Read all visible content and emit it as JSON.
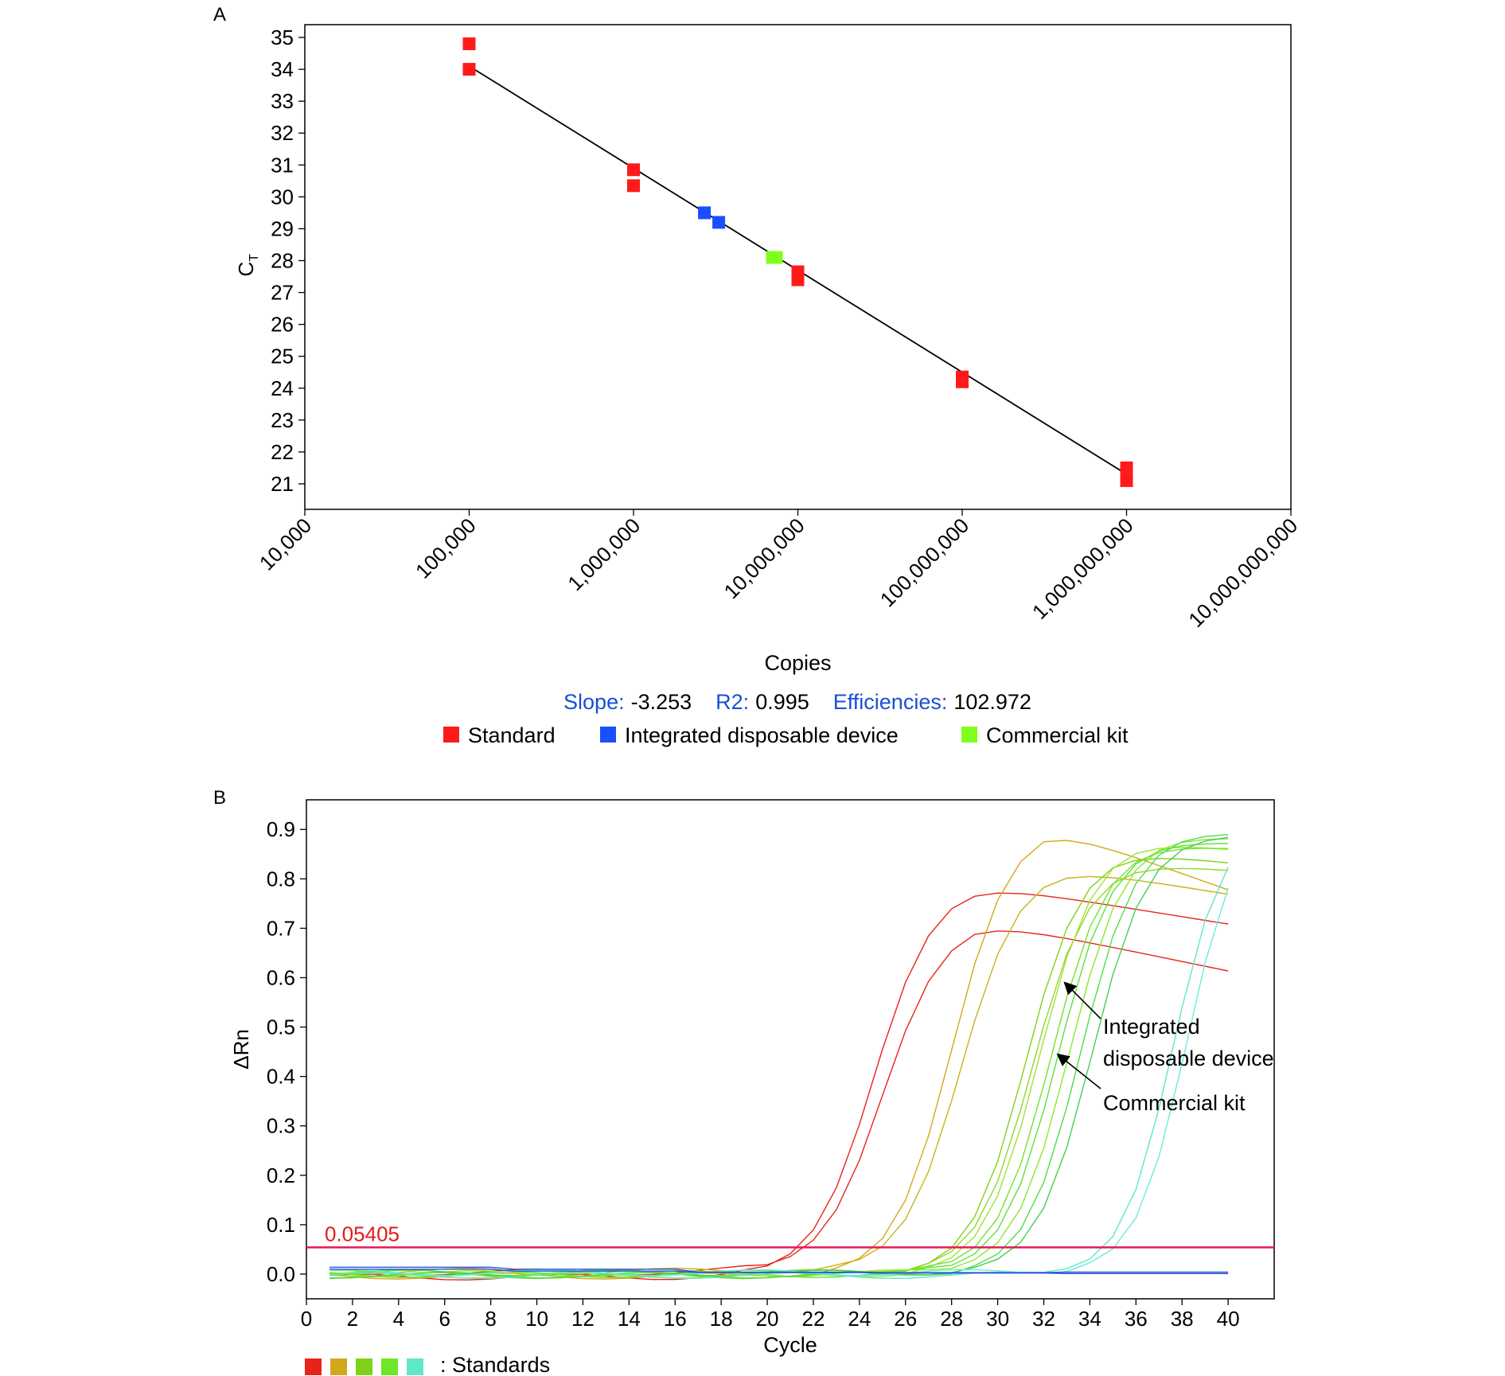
{
  "chart_data": [
    {
      "type": "scatter",
      "panel_label": "A",
      "xlabel": "Copies",
      "ylabel_main": "C",
      "ylabel_sub": "T",
      "x_scale": "log10",
      "xlim": [
        10000,
        10000000000
      ],
      "ylim": [
        20.2,
        35.4
      ],
      "x_ticks": [
        10000,
        100000,
        1000000,
        10000000,
        100000000,
        1000000000,
        10000000000
      ],
      "x_tick_labels": [
        "10,000",
        "100,000",
        "1,000,000",
        "10,000,000",
        "100,000,000",
        "1,000,000,000",
        "10,000,000,000"
      ],
      "y_ticks": [
        21,
        22,
        23,
        24,
        25,
        26,
        27,
        28,
        29,
        30,
        31,
        32,
        33,
        34,
        35
      ],
      "y_tick_labels": [
        "21",
        "22",
        "23",
        "24",
        "25",
        "26",
        "27",
        "28",
        "29",
        "30",
        "31",
        "32",
        "33",
        "34",
        "35"
      ],
      "series": [
        {
          "name": "Standard",
          "color": "#ff1a1a",
          "points": [
            {
              "x": 100000,
              "y": 34.8
            },
            {
              "x": 100000,
              "y": 34.0
            },
            {
              "x": 1000000,
              "y": 30.85
            },
            {
              "x": 1000000,
              "y": 30.35
            },
            {
              "x": 10000000,
              "y": 27.65
            },
            {
              "x": 10000000,
              "y": 27.4
            },
            {
              "x": 100000000,
              "y": 24.35
            },
            {
              "x": 100000000,
              "y": 24.2
            },
            {
              "x": 1000000000,
              "y": 21.5
            },
            {
              "x": 1000000000,
              "y": 21.1
            }
          ]
        },
        {
          "name": "Integrated disposable device",
          "color": "#1a4fff",
          "points": [
            {
              "x": 2700000,
              "y": 29.5
            },
            {
              "x": 3300000,
              "y": 29.2
            }
          ]
        },
        {
          "name": "Commercial kit",
          "color": "#7fff1a",
          "points": [
            {
              "x": 7000000,
              "y": 28.1
            },
            {
              "x": 7400000,
              "y": 28.1
            }
          ]
        }
      ],
      "fit_line": {
        "x": [
          100000,
          1000000000
        ],
        "y": [
          34.1,
          21.3
        ],
        "color": "#000000"
      },
      "stats": [
        {
          "label": "Slope:",
          "value": "-3.253"
        },
        {
          "label": "R2:",
          "value": "0.995"
        },
        {
          "label": "Efficiencies:",
          "value": "102.972"
        }
      ],
      "stats_label_color": "#1a4fd6",
      "legend": [
        "Standard",
        "Integrated disposable device",
        "Commercial kit"
      ],
      "legend_placement": "bottom"
    },
    {
      "type": "line",
      "panel_label": "B",
      "xlabel": "Cycle",
      "ylabel": "ΔRn",
      "xlim": [
        0,
        42
      ],
      "ylim": [
        -0.05,
        0.96
      ],
      "x_ticks": [
        0,
        2,
        4,
        6,
        8,
        10,
        12,
        14,
        16,
        18,
        20,
        22,
        24,
        26,
        28,
        30,
        32,
        34,
        36,
        38,
        40
      ],
      "x_tick_labels": [
        "0",
        "2",
        "4",
        "6",
        "8",
        "10",
        "12",
        "14",
        "16",
        "18",
        "20",
        "22",
        "24",
        "26",
        "28",
        "30",
        "32",
        "34",
        "36",
        "38",
        "40"
      ],
      "y_ticks": [
        0,
        0.1,
        0.2,
        0.3,
        0.4,
        0.5,
        0.6,
        0.7,
        0.8,
        0.9
      ],
      "y_tick_labels": [
        "0.0",
        "0.1",
        "0.2",
        "0.3",
        "0.4",
        "0.5",
        "0.6",
        "0.7",
        "0.8",
        "0.9"
      ],
      "threshold": {
        "value": 0.05405,
        "label": "0.05405",
        "color": "#e6195a"
      },
      "series": [
        {
          "color": "#e8241a",
          "midpoint": 24.6,
          "width": 1.3,
          "plateau": 0.8,
          "decline": 0.09,
          "offset": -0.006
        },
        {
          "color": "#e8241a",
          "midpoint": 25.0,
          "width": 1.3,
          "plateau": 0.715,
          "decline": 0.115,
          "offset": 0.004
        },
        {
          "color": "#d4a71a",
          "midpoint": 28.0,
          "width": 1.25,
          "plateau": 0.915,
          "decline": 0.2,
          "offset": -0.004
        },
        {
          "color": "#c9b21a",
          "midpoint": 28.4,
          "width": 1.25,
          "plateau": 0.82,
          "decline": 0.09,
          "offset": 0.006
        },
        {
          "color": "#7fd21a",
          "midpoint": 31.2,
          "width": 1.2,
          "plateau": 0.86,
          "decline": 0.06,
          "offset": -0.003
        },
        {
          "color": "#8fd82a",
          "midpoint": 31.5,
          "width": 1.2,
          "plateau": 0.83,
          "decline": 0.04,
          "offset": 0.003
        },
        {
          "color": "#9fe23a",
          "midpoint": 31.8,
          "width": 1.2,
          "plateau": 0.88,
          "decline": 0.05,
          "offset": -0.002
        },
        {
          "color": "#6ee62a",
          "midpoint": 32.3,
          "width": 1.2,
          "plateau": 0.87,
          "decline": 0.03,
          "offset": 0.002
        },
        {
          "color": "#5fe03a",
          "midpoint": 32.6,
          "width": 1.2,
          "plateau": 0.88,
          "decline": 0.02,
          "offset": -0.001
        },
        {
          "color": "#8be830",
          "midpoint": 33.1,
          "width": 1.2,
          "plateau": 0.89,
          "decline": 0.03,
          "offset": 0.001
        },
        {
          "color": "#4fdc4a",
          "midpoint": 33.6,
          "width": 1.2,
          "plateau": 0.9,
          "decline": 0.02,
          "offset": -0.002
        },
        {
          "color": "#43d04f",
          "midpoint": 34.1,
          "width": 1.2,
          "plateau": 0.89,
          "decline": 0.01,
          "offset": 0.002
        },
        {
          "color": "#5ee8c8",
          "midpoint": 37.6,
          "width": 1.1,
          "plateau": 0.92,
          "decline": 0.0,
          "offset": -0.003
        },
        {
          "color": "#66eedd",
          "midpoint": 38.2,
          "width": 1.1,
          "plateau": 0.93,
          "decline": 0.0,
          "offset": 0.003
        },
        {
          "color": "#2a56d8",
          "midpoint": 0,
          "width": 1,
          "plateau": 0,
          "decline": 0,
          "offset": 0.0,
          "flat": [
            0.014,
            0.01,
            0.004,
            0.003,
            0.004,
            0.006
          ]
        },
        {
          "color": "#2a56d8",
          "midpoint": 0,
          "width": 1,
          "plateau": 0,
          "decline": 0,
          "offset": 0.0,
          "flat": [
            0.01,
            0.006,
            0.003,
            0.002,
            0.001,
            0.0
          ]
        }
      ],
      "annotations": [
        {
          "lines": [
            "Integrated",
            "disposable device"
          ],
          "arrow_to": {
            "x": 32.8,
            "y": 0.595
          }
        },
        {
          "lines": [
            "Commercial kit"
          ],
          "arrow_to": {
            "x": 32.5,
            "y": 0.45
          }
        }
      ],
      "standards_legend": {
        "colors": [
          "#e8241a",
          "#d4a71a",
          "#7fd21a",
          "#6ee62a",
          "#5ee8c8"
        ],
        "label": ": Standards"
      }
    }
  ]
}
